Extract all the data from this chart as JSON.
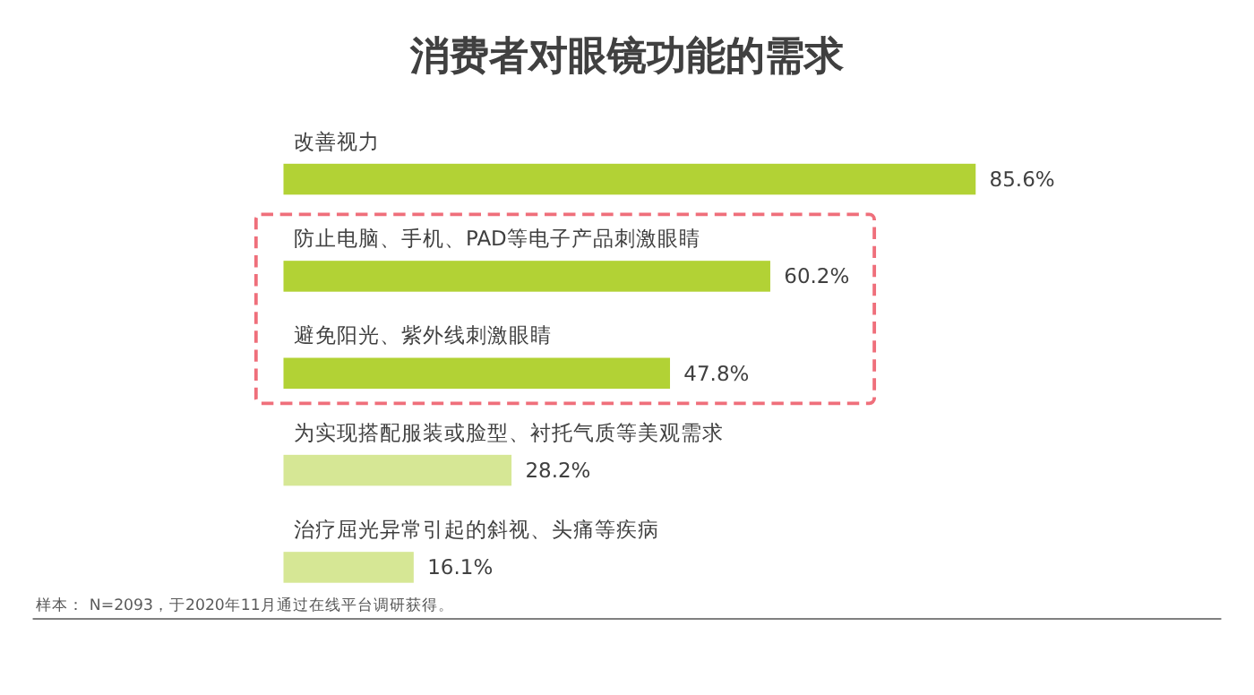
{
  "chart_data": {
    "type": "bar",
    "orientation": "horizontal",
    "title": "消费者对眼镜功能的需求",
    "categories": [
      "改善视力",
      "防止电脑、手机、PAD等电子产品刺激眼睛",
      "避免阳光、紫外线刺激眼睛",
      "为实现搭配服装或脸型、衬托气质等美观需求",
      "治疗屈光异常引起的斜视、头痛等疾病"
    ],
    "values": [
      85.6,
      60.2,
      47.8,
      28.2,
      16.1
    ],
    "colors": [
      "#b2d235",
      "#b2d235",
      "#b2d235",
      "#d6e795",
      "#d6e795"
    ],
    "value_labels": [
      "85.6%",
      "60.2%",
      "47.8%",
      "28.2%",
      "16.1%"
    ],
    "annotations": [
      "样本： N=2093，于2020年11月通过在线平台调研获得。"
    ]
  }
}
